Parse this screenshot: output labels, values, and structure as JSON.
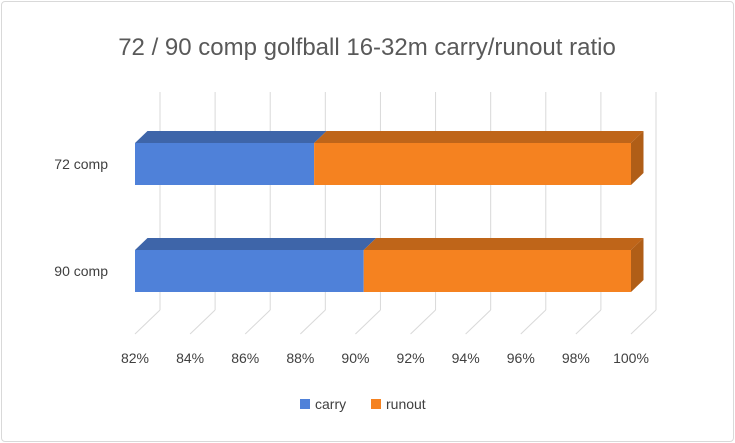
{
  "chart_data": {
    "type": "bar",
    "orientation": "horizontal",
    "stacked": "percent",
    "three_d": true,
    "title": "72 / 90 comp golfball 16-32m carry/runout ratio",
    "categories": [
      "72 comp",
      "90 comp"
    ],
    "series": [
      {
        "name": "carry",
        "values": [
          88.5,
          90.3
        ],
        "color": "#4F81D9"
      },
      {
        "name": "runout",
        "values": [
          11.5,
          9.7
        ],
        "color": "#F58220"
      }
    ],
    "xlim": [
      82,
      100
    ],
    "x_ticks": [
      "82%",
      "84%",
      "86%",
      "88%",
      "90%",
      "92%",
      "94%",
      "96%",
      "98%",
      "100%"
    ],
    "grid": true,
    "legend": "bottom"
  }
}
